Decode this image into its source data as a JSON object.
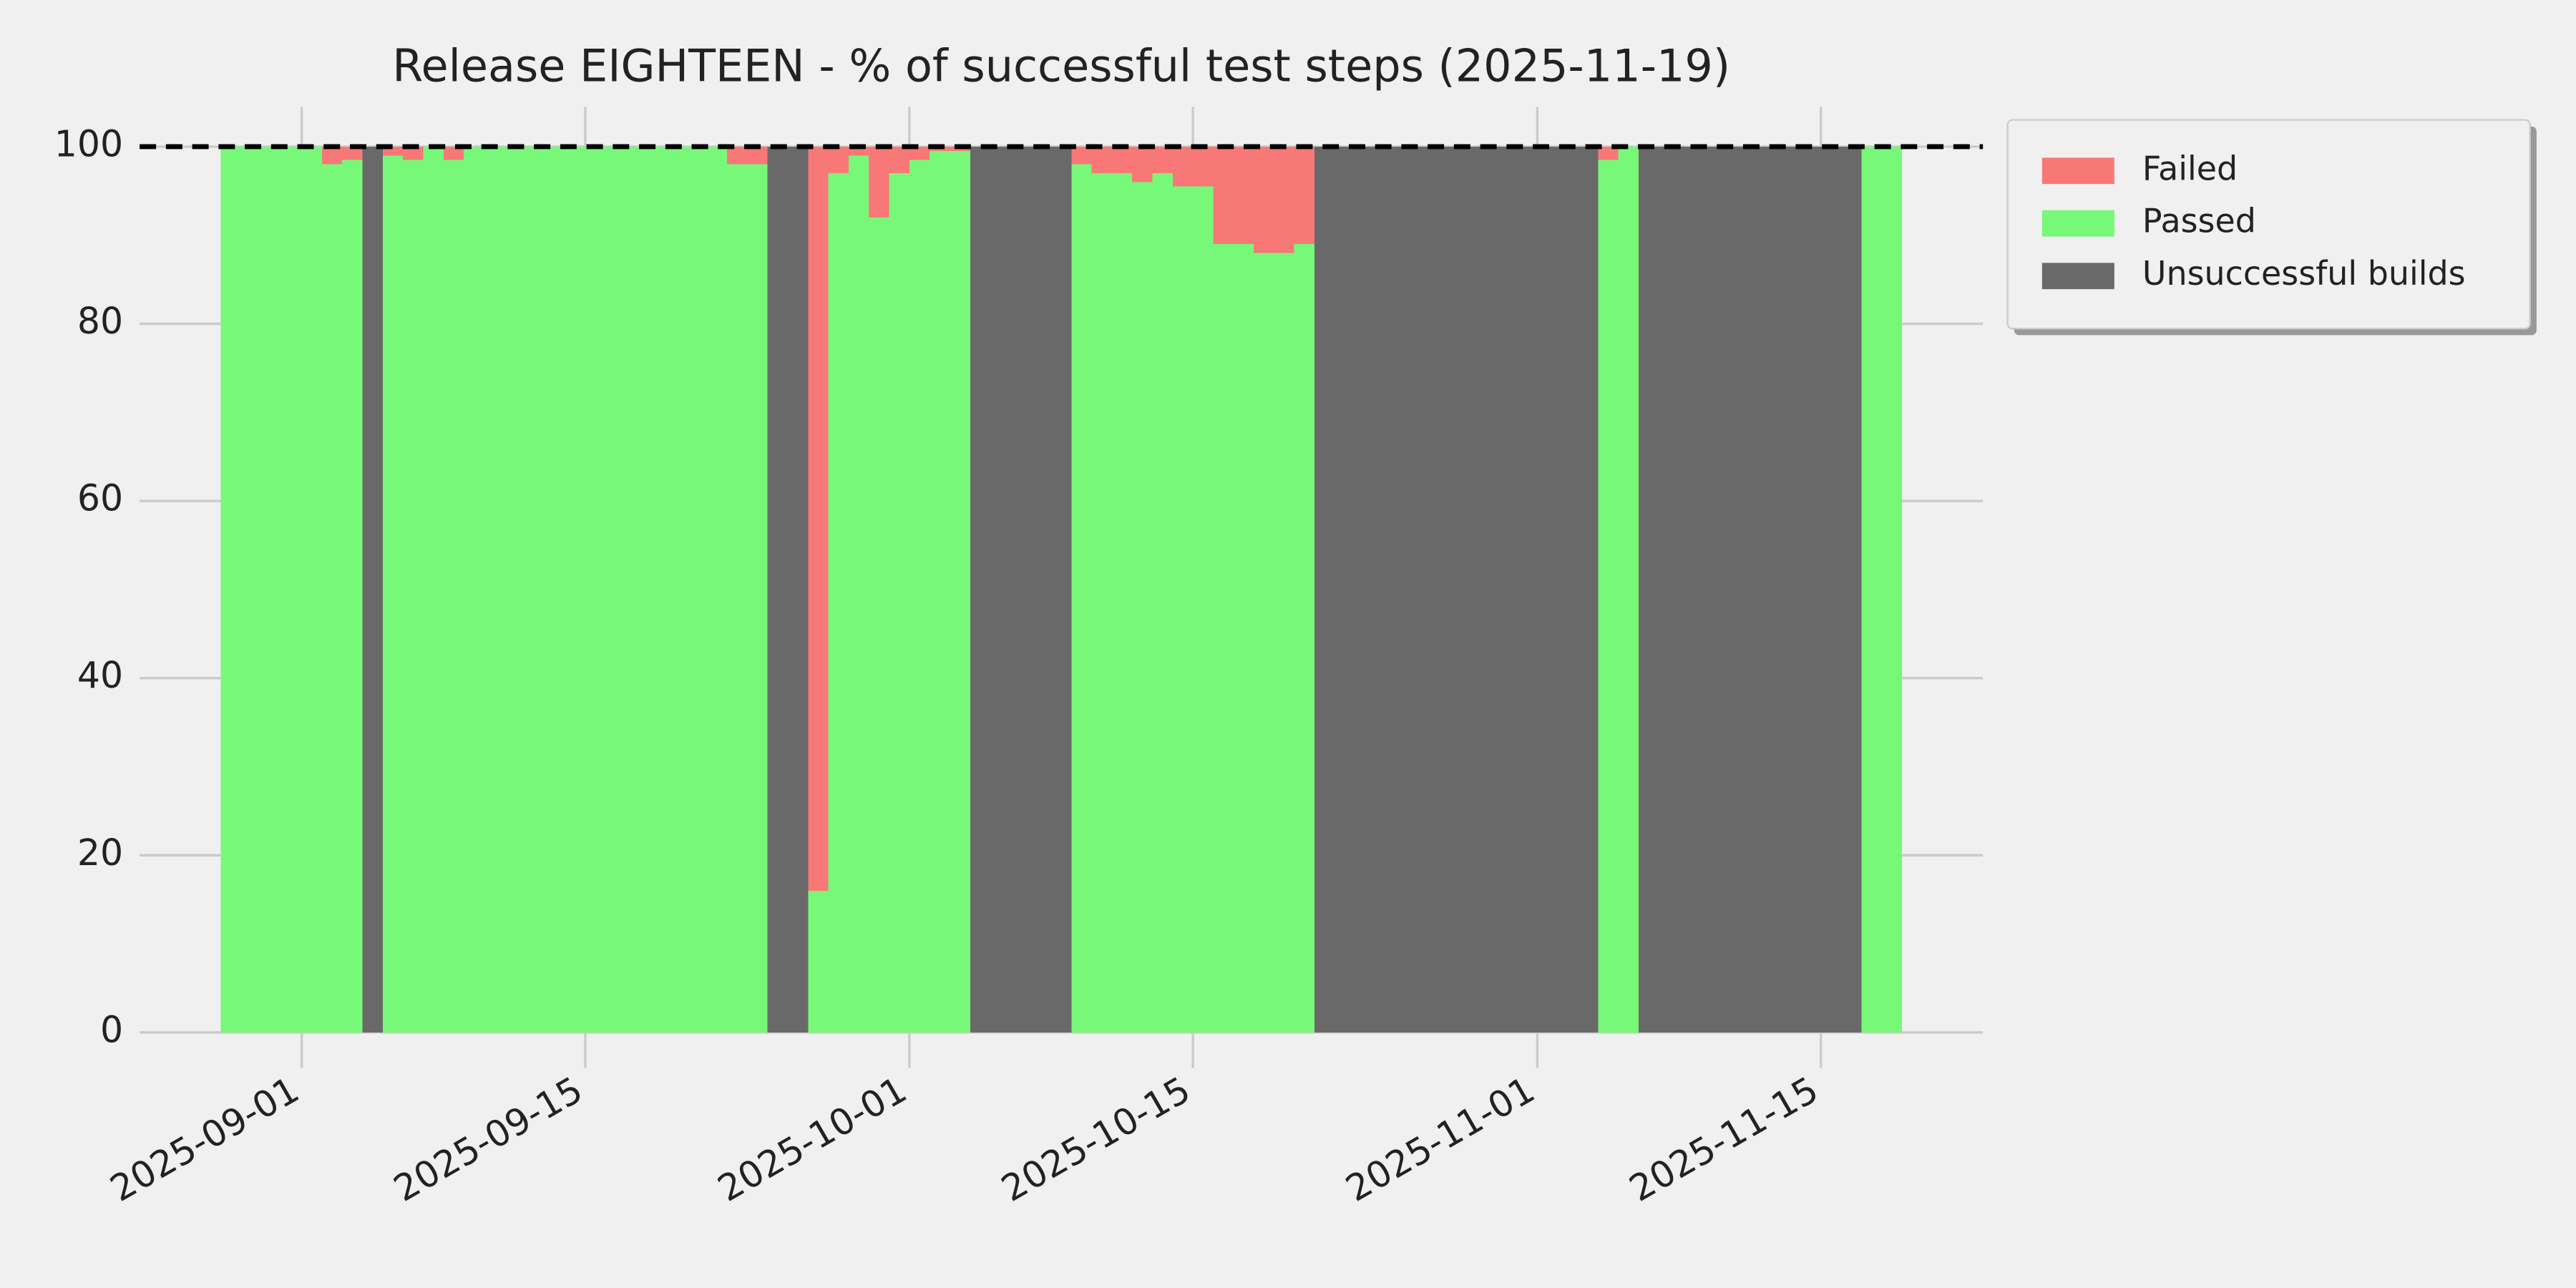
{
  "chart_data": {
    "type": "stacked-area",
    "title": "Release EIGHTEEN - % of successful test steps (2025-11-19)",
    "x": [
      "2025-08-28",
      "2025-08-29",
      "2025-08-30",
      "2025-08-31",
      "2025-09-01",
      "2025-09-02",
      "2025-09-03",
      "2025-09-04",
      "2025-09-05",
      "2025-09-06",
      "2025-09-07",
      "2025-09-08",
      "2025-09-09",
      "2025-09-10",
      "2025-09-11",
      "2025-09-12",
      "2025-09-13",
      "2025-09-14",
      "2025-09-15",
      "2025-09-16",
      "2025-09-17",
      "2025-09-18",
      "2025-09-19",
      "2025-09-20",
      "2025-09-21",
      "2025-09-22",
      "2025-09-23",
      "2025-09-24",
      "2025-09-25",
      "2025-09-26",
      "2025-09-27",
      "2025-09-28",
      "2025-09-29",
      "2025-09-30",
      "2025-10-01",
      "2025-10-02",
      "2025-10-03",
      "2025-10-04",
      "2025-10-05",
      "2025-10-06",
      "2025-10-07",
      "2025-10-08",
      "2025-10-09",
      "2025-10-10",
      "2025-10-11",
      "2025-10-12",
      "2025-10-13",
      "2025-10-14",
      "2025-10-15",
      "2025-10-16",
      "2025-10-17",
      "2025-10-18",
      "2025-10-19",
      "2025-10-20",
      "2025-10-21",
      "2025-10-22",
      "2025-10-23",
      "2025-10-24",
      "2025-10-25",
      "2025-10-26",
      "2025-10-27",
      "2025-10-28",
      "2025-10-29",
      "2025-10-30",
      "2025-10-31",
      "2025-11-01",
      "2025-11-02",
      "2025-11-03",
      "2025-11-04",
      "2025-11-05",
      "2025-11-06",
      "2025-11-07",
      "2025-11-08",
      "2025-11-09",
      "2025-11-10",
      "2025-11-11",
      "2025-11-12",
      "2025-11-13",
      "2025-11-14",
      "2025-11-15",
      "2025-11-16",
      "2025-11-17",
      "2025-11-18"
    ],
    "series": [
      {
        "name": "Failed",
        "color": "#f87878",
        "values": [
          0,
          0,
          0,
          0,
          0,
          2,
          1.5,
          0,
          1,
          1.5,
          0,
          1.5,
          0,
          0,
          0,
          0,
          0,
          0,
          0,
          0,
          0,
          0,
          0,
          0,
          0,
          2,
          2,
          0,
          0,
          84,
          3,
          1,
          8,
          3,
          1.5,
          0.5,
          0.5,
          0,
          0,
          0,
          0,
          0,
          2,
          3,
          3,
          4,
          3,
          4.5,
          4.5,
          11,
          11,
          12,
          12,
          11,
          0,
          0,
          0,
          0,
          0,
          0,
          0,
          0,
          0,
          0,
          0,
          0,
          0,
          0,
          1.5,
          0,
          0,
          0,
          0,
          0,
          0,
          0,
          0,
          0,
          0,
          0,
          0,
          0,
          0
        ]
      },
      {
        "name": "Passed",
        "color": "#78f878",
        "values": [
          100,
          100,
          100,
          100,
          100,
          98,
          98.5,
          0,
          99,
          98.5,
          100,
          98.5,
          100,
          100,
          100,
          100,
          100,
          100,
          100,
          100,
          100,
          100,
          100,
          100,
          100,
          98,
          98,
          0,
          0,
          16,
          97,
          99,
          92,
          97,
          98.5,
          99.5,
          99.5,
          0,
          0,
          0,
          0,
          0,
          98,
          97,
          97,
          96,
          97,
          95.5,
          95.5,
          89,
          89,
          88,
          88,
          89,
          0,
          0,
          0,
          0,
          0,
          0,
          0,
          0,
          0,
          0,
          0,
          0,
          0,
          0,
          98.5,
          100,
          0,
          0,
          0,
          0,
          0,
          0,
          0,
          0,
          0,
          0,
          0,
          100,
          100
        ]
      },
      {
        "name": "Unsuccessful builds",
        "color": "#696969",
        "values": [
          0,
          0,
          0,
          0,
          0,
          0,
          0,
          100,
          0,
          0,
          0,
          0,
          0,
          0,
          0,
          0,
          0,
          0,
          0,
          0,
          0,
          0,
          0,
          0,
          0,
          0,
          0,
          100,
          100,
          0,
          0,
          0,
          0,
          0,
          0,
          0,
          0,
          100,
          100,
          100,
          100,
          100,
          0,
          0,
          0,
          0,
          0,
          0,
          0,
          0,
          0,
          0,
          0,
          0,
          100,
          100,
          100,
          100,
          100,
          100,
          100,
          100,
          100,
          100,
          100,
          100,
          100,
          100,
          0,
          0,
          100,
          100,
          100,
          100,
          100,
          100,
          100,
          100,
          100,
          100,
          100,
          0,
          0
        ]
      }
    ],
    "xlim": [
      "2025-08-24",
      "2025-11-23"
    ],
    "xticks": [
      "2025-09-01",
      "2025-09-15",
      "2025-10-01",
      "2025-10-15",
      "2025-11-01",
      "2025-11-15"
    ],
    "ylim": [
      -4,
      104.5
    ],
    "yticks": [
      0,
      20,
      40,
      60,
      80,
      100
    ],
    "reference_line": 100,
    "grid": true,
    "legend": "outside-upper-right"
  }
}
